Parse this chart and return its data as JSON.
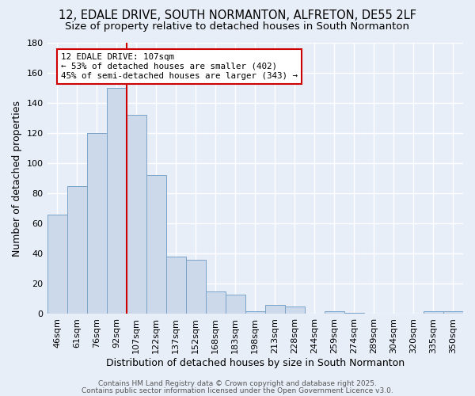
{
  "title1": "12, EDALE DRIVE, SOUTH NORMANTON, ALFRETON, DE55 2LF",
  "title2": "Size of property relative to detached houses in South Normanton",
  "xlabel": "Distribution of detached houses by size in South Normanton",
  "ylabel": "Number of detached properties",
  "categories": [
    "46sqm",
    "61sqm",
    "76sqm",
    "92sqm",
    "107sqm",
    "122sqm",
    "137sqm",
    "152sqm",
    "168sqm",
    "183sqm",
    "198sqm",
    "213sqm",
    "228sqm",
    "244sqm",
    "259sqm",
    "274sqm",
    "289sqm",
    "304sqm",
    "320sqm",
    "335sqm",
    "350sqm"
  ],
  "values": [
    66,
    85,
    120,
    150,
    132,
    92,
    38,
    36,
    15,
    13,
    2,
    6,
    5,
    0,
    2,
    1,
    0,
    0,
    0,
    2,
    2
  ],
  "bar_color": "#ccd9ea",
  "bar_edge_color": "#7ba3c8",
  "red_line_index": 4,
  "annotation_text": "12 EDALE DRIVE: 107sqm\n← 53% of detached houses are smaller (402)\n45% of semi-detached houses are larger (343) →",
  "annotation_box_color": "#ffffff",
  "annotation_box_edge": "#cc0000",
  "ylim": [
    0,
    180
  ],
  "yticks": [
    0,
    20,
    40,
    60,
    80,
    100,
    120,
    140,
    160,
    180
  ],
  "footer1": "Contains HM Land Registry data © Crown copyright and database right 2025.",
  "footer2": "Contains public sector information licensed under the Open Government Licence v3.0.",
  "bg_color": "#e8eef8",
  "grid_color": "#ffffff",
  "title_fontsize": 10.5,
  "subtitle_fontsize": 9.5,
  "axis_label_fontsize": 9,
  "tick_fontsize": 8,
  "footer_fontsize": 6.5
}
